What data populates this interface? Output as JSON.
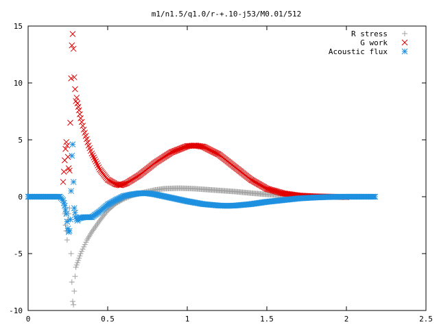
{
  "chart_data": {
    "type": "scatter",
    "title": "m1/n1.5/q1.0/r-+.10-j53/M0.01/512",
    "xlabel": "",
    "ylabel": "",
    "xlim": [
      0,
      2.5
    ],
    "ylim": [
      -10,
      15
    ],
    "x_ticks": [
      "0",
      "0.5",
      "1",
      "1.5",
      "2",
      "2.5"
    ],
    "y_ticks": [
      "-10",
      "-5",
      "0",
      "5",
      "10",
      "15"
    ],
    "x_tick_values": [
      0,
      0.5,
      1,
      1.5,
      2,
      2.5
    ],
    "y_tick_values": [
      -10,
      -5,
      0,
      5,
      10,
      15
    ],
    "grid": false,
    "legend_position": "top-right",
    "series": [
      {
        "name": "R stress",
        "marker": "plus",
        "color": "#a0a0a0",
        "points": [
          [
            0.23,
            -1.5
          ],
          [
            0.235,
            -2.5
          ],
          [
            0.24,
            -3.0
          ],
          [
            0.245,
            -3.8
          ],
          [
            0.25,
            -2.0
          ],
          [
            0.255,
            -1.5
          ],
          [
            0.26,
            -1.0
          ],
          [
            0.265,
            -2.0
          ],
          [
            0.27,
            -5.0
          ],
          [
            0.275,
            -7.5
          ],
          [
            0.28,
            -9.2
          ],
          [
            0.285,
            -9.5
          ],
          [
            0.29,
            -8.3
          ],
          [
            0.295,
            -7.0
          ],
          [
            0.3,
            -6.2
          ],
          [
            0.31,
            -5.8
          ],
          [
            0.32,
            -5.4
          ],
          [
            0.33,
            -5.0
          ],
          [
            0.35,
            -4.4
          ],
          [
            0.37,
            -3.8
          ],
          [
            0.4,
            -3.1
          ],
          [
            0.45,
            -2.1
          ],
          [
            0.5,
            -1.2
          ],
          [
            0.55,
            -0.6
          ],
          [
            0.6,
            -0.2
          ],
          [
            0.65,
            0.1
          ],
          [
            0.7,
            0.3
          ],
          [
            0.75,
            0.45
          ],
          [
            0.8,
            0.6
          ],
          [
            0.85,
            0.7
          ],
          [
            0.9,
            0.73
          ],
          [
            0.95,
            0.75
          ],
          [
            1.0,
            0.73
          ],
          [
            1.05,
            0.7
          ],
          [
            1.1,
            0.65
          ],
          [
            1.2,
            0.55
          ],
          [
            1.3,
            0.45
          ],
          [
            1.4,
            0.32
          ],
          [
            1.5,
            0.2
          ],
          [
            1.6,
            0.12
          ],
          [
            1.7,
            0.07
          ],
          [
            1.8,
            0.03
          ],
          [
            1.9,
            0.01
          ],
          [
            2.0,
            0.0
          ]
        ]
      },
      {
        "name": "G work",
        "marker": "cross",
        "color": "#e00000",
        "points": [
          [
            0.22,
            1.3
          ],
          [
            0.225,
            2.2
          ],
          [
            0.23,
            3.2
          ],
          [
            0.235,
            4.2
          ],
          [
            0.24,
            4.8
          ],
          [
            0.245,
            4.5
          ],
          [
            0.25,
            3.5
          ],
          [
            0.255,
            2.5
          ],
          [
            0.26,
            2.3
          ],
          [
            0.265,
            6.5
          ],
          [
            0.27,
            10.4
          ],
          [
            0.275,
            13.3
          ],
          [
            0.28,
            14.3
          ],
          [
            0.285,
            13.0
          ],
          [
            0.29,
            10.5
          ],
          [
            0.3,
            8.4
          ],
          [
            0.305,
            8.7
          ],
          [
            0.31,
            8.2
          ],
          [
            0.32,
            7.6
          ],
          [
            0.33,
            6.9
          ],
          [
            0.35,
            5.9
          ],
          [
            0.38,
            4.5
          ],
          [
            0.4,
            3.8
          ],
          [
            0.45,
            2.4
          ],
          [
            0.5,
            1.5
          ],
          [
            0.55,
            1.1
          ],
          [
            0.58,
            1.0
          ],
          [
            0.62,
            1.2
          ],
          [
            0.7,
            1.9
          ],
          [
            0.8,
            3.0
          ],
          [
            0.9,
            3.9
          ],
          [
            1.0,
            4.45
          ],
          [
            1.05,
            4.5
          ],
          [
            1.1,
            4.4
          ],
          [
            1.2,
            3.7
          ],
          [
            1.3,
            2.6
          ],
          [
            1.4,
            1.5
          ],
          [
            1.5,
            0.7
          ],
          [
            1.6,
            0.3
          ],
          [
            1.7,
            0.1
          ],
          [
            1.8,
            0.03
          ],
          [
            1.9,
            0.0
          ],
          [
            2.0,
            -0.03
          ]
        ]
      },
      {
        "name": "Acoustic flux",
        "marker": "star",
        "color": "#1e90e0",
        "points": [
          [
            0.0,
            0.0
          ],
          [
            0.05,
            0.0
          ],
          [
            0.1,
            0.0
          ],
          [
            0.15,
            0.0
          ],
          [
            0.2,
            0.0
          ],
          [
            0.22,
            -0.3
          ],
          [
            0.23,
            -0.8
          ],
          [
            0.24,
            -1.5
          ],
          [
            0.245,
            -2.2
          ],
          [
            0.25,
            -2.8
          ],
          [
            0.255,
            -3.1
          ],
          [
            0.26,
            -3.0
          ],
          [
            0.265,
            -2.0
          ],
          [
            0.27,
            0.5
          ],
          [
            0.275,
            3.6
          ],
          [
            0.28,
            4.6
          ],
          [
            0.285,
            1.3
          ],
          [
            0.29,
            -1.0
          ],
          [
            0.3,
            -1.8
          ],
          [
            0.31,
            -2.1
          ],
          [
            0.32,
            -1.9
          ],
          [
            0.35,
            -1.8
          ],
          [
            0.4,
            -1.8
          ],
          [
            0.45,
            -1.3
          ],
          [
            0.5,
            -0.7
          ],
          [
            0.55,
            -0.3
          ],
          [
            0.6,
            0.05
          ],
          [
            0.65,
            0.2
          ],
          [
            0.7,
            0.3
          ],
          [
            0.75,
            0.3
          ],
          [
            0.8,
            0.2
          ],
          [
            0.9,
            -0.1
          ],
          [
            1.0,
            -0.4
          ],
          [
            1.1,
            -0.65
          ],
          [
            1.2,
            -0.78
          ],
          [
            1.25,
            -0.8
          ],
          [
            1.3,
            -0.78
          ],
          [
            1.4,
            -0.65
          ],
          [
            1.5,
            -0.45
          ],
          [
            1.6,
            -0.3
          ],
          [
            1.7,
            -0.15
          ],
          [
            1.8,
            -0.07
          ],
          [
            1.9,
            -0.02
          ],
          [
            2.0,
            0.0
          ],
          [
            2.1,
            0.0
          ],
          [
            2.18,
            0.0
          ]
        ]
      }
    ]
  }
}
